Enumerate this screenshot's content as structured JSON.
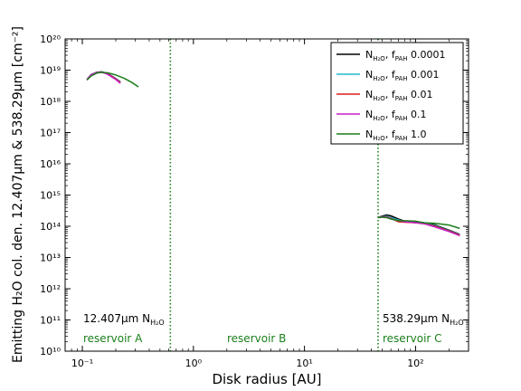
{
  "chart_data": {
    "type": "line",
    "xlabel": "Disk radius [AU]",
    "ylabel": "Emitting H₂O col. den. 12.407μm & 538.29μm [cm⁻²]",
    "xlim": [
      0.07,
      300
    ],
    "ylim": [
      10000000000.0,
      1e+20
    ],
    "xscale": "log",
    "yscale": "log",
    "xticks": [
      {
        "value": 0.1,
        "label": "10⁻¹"
      },
      {
        "value": 1,
        "label": "10⁰"
      },
      {
        "value": 10,
        "label": "10¹"
      },
      {
        "value": 100,
        "label": "10²"
      }
    ],
    "yticks": [
      {
        "value": 10000000000.0,
        "label": "10¹⁰"
      },
      {
        "value": 100000000000.0,
        "label": "10¹¹"
      },
      {
        "value": 1000000000000.0,
        "label": "10¹²"
      },
      {
        "value": 10000000000000.0,
        "label": "10¹³"
      },
      {
        "value": 100000000000000.0,
        "label": "10¹⁴"
      },
      {
        "value": 1000000000000000.0,
        "label": "10¹⁵"
      },
      {
        "value": 1e+16,
        "label": "10¹⁶"
      },
      {
        "value": 1e+17,
        "label": "10¹⁷"
      },
      {
        "value": 1e+18,
        "label": "10¹⁸"
      },
      {
        "value": 1e+19,
        "label": "10¹⁹"
      },
      {
        "value": 1e+20,
        "label": "10²⁰"
      }
    ],
    "grid": false,
    "legend_position": "top-right",
    "series": [
      {
        "name": "N_H2O, f_PAH 0.0001",
        "label_main": "N",
        "label_sub": "H₂O",
        "label_f": ", f",
        "label_fsub": "PAH",
        "label_val": " 0.0001",
        "color": "#000000",
        "inner": {
          "x": [
            0.11,
            0.12,
            0.135,
            0.15,
            0.165,
            0.18,
            0.2,
            0.22
          ],
          "y": [
            5e+18,
            7.2e+18,
            8.6e+18,
            8.8e+18,
            8e+18,
            6.8e+18,
            5.4e+18,
            4.2e+18
          ]
        },
        "outer": {
          "x": [
            46,
            50,
            55,
            60,
            70,
            80,
            100,
            120,
            150,
            200,
            250
          ],
          "y": [
            190000000000000.0,
            210000000000000.0,
            230000000000000.0,
            215000000000000.0,
            170000000000000.0,
            145000000000000.0,
            135000000000000.0,
            130000000000000.0,
            110000000000000.0,
            75000000000000.0,
            55000000000000.0
          ]
        }
      },
      {
        "name": "N_H2O, f_PAH 0.001",
        "label_main": "N",
        "label_sub": "H₂O",
        "label_f": ", f",
        "label_fsub": "PAH",
        "label_val": " 0.001",
        "color": "#1fb8cc",
        "inner": {
          "x": [
            0.11,
            0.12,
            0.135,
            0.15,
            0.165,
            0.18,
            0.2,
            0.22
          ],
          "y": [
            5e+18,
            7.1e+18,
            8.5e+18,
            8.7e+18,
            7.9e+18,
            6.7e+18,
            5.3e+18,
            4.1e+18
          ]
        },
        "outer": {
          "x": [
            46,
            50,
            55,
            60,
            70,
            80,
            100,
            120,
            150,
            200,
            250
          ],
          "y": [
            190000000000000.0,
            200000000000000.0,
            210000000000000.0,
            190000000000000.0,
            160000000000000.0,
            140000000000000.0,
            130000000000000.0,
            125000000000000.0,
            105000000000000.0,
            72000000000000.0,
            53000000000000.0
          ]
        }
      },
      {
        "name": "N_H2O, f_PAH 0.01",
        "label_main": "N",
        "label_sub": "H₂O",
        "label_f": ", f",
        "label_fsub": "PAH",
        "label_val": " 0.01",
        "color": "#e01b1b",
        "inner": {
          "x": [
            0.11,
            0.12,
            0.135,
            0.15,
            0.165,
            0.18,
            0.2,
            0.22
          ],
          "y": [
            5e+18,
            7e+18,
            8.4e+18,
            8.6e+18,
            7.8e+18,
            6.6e+18,
            5.2e+18,
            4e+18
          ]
        },
        "outer": {
          "x": [
            46,
            50,
            55,
            60,
            70,
            80,
            100,
            120,
            150,
            200,
            250
          ],
          "y": [
            190000000000000.0,
            200000000000000.0,
            200000000000000.0,
            180000000000000.0,
            140000000000000.0,
            135000000000000.0,
            130000000000000.0,
            120000000000000.0,
            100000000000000.0,
            70000000000000.0,
            52000000000000.0
          ]
        }
      },
      {
        "name": "N_H2O, f_PAH 0.1",
        "label_main": "N",
        "label_sub": "H₂O",
        "label_f": ", f",
        "label_fsub": "PAH",
        "label_val": " 0.1",
        "color": "#c71fc7",
        "inner": {
          "x": [
            0.11,
            0.12,
            0.135,
            0.15,
            0.165,
            0.18,
            0.2,
            0.22
          ],
          "y": [
            5e+18,
            7e+18,
            8.3e+18,
            8.5e+18,
            7.6e+18,
            6.4e+18,
            5e+18,
            3.8e+18
          ]
        },
        "outer": {
          "x": [
            46,
            50,
            55,
            60,
            70,
            80,
            100,
            120,
            150,
            200,
            250
          ],
          "y": [
            190000000000000.0,
            200000000000000.0,
            195000000000000.0,
            175000000000000.0,
            150000000000000.0,
            140000000000000.0,
            130000000000000.0,
            120000000000000.0,
            95000000000000.0,
            68000000000000.0,
            50000000000000.0
          ]
        }
      },
      {
        "name": "N_H2O, f_PAH 1.0",
        "label_main": "N",
        "label_sub": "H₂O",
        "label_f": ", f",
        "label_fsub": "PAH",
        "label_val": " 1.0",
        "color": "#1a7f1a",
        "inner": {
          "x": [
            0.11,
            0.12,
            0.135,
            0.15,
            0.17,
            0.2,
            0.24,
            0.28,
            0.32
          ],
          "y": [
            4.8e+18,
            6.5e+18,
            8e+18,
            8.5e+18,
            8.2e+18,
            7e+18,
            5.4e+18,
            4e+18,
            2.9e+18
          ]
        },
        "outer": {
          "x": [
            46,
            50,
            55,
            60,
            70,
            80,
            100,
            120,
            150,
            200,
            250
          ],
          "y": [
            190000000000000.0,
            195000000000000.0,
            190000000000000.0,
            170000000000000.0,
            150000000000000.0,
            150000000000000.0,
            145000000000000.0,
            130000000000000.0,
            125000000000000.0,
            110000000000000.0,
            85000000000000.0
          ]
        }
      }
    ],
    "vlines": [
      {
        "x": 0.62,
        "color": "#1a7f1a"
      },
      {
        "x": 46,
        "color": "#1a7f1a"
      }
    ],
    "annotations": {
      "inner_label_main": "12.407μm N",
      "inner_label_sub": "H₂O",
      "outer_label_main": "538.29μm N",
      "outer_label_sub": "H₂O",
      "reservoir_a": "reservoir A",
      "reservoir_b": "reservoir B",
      "reservoir_c": "reservoir C"
    }
  }
}
